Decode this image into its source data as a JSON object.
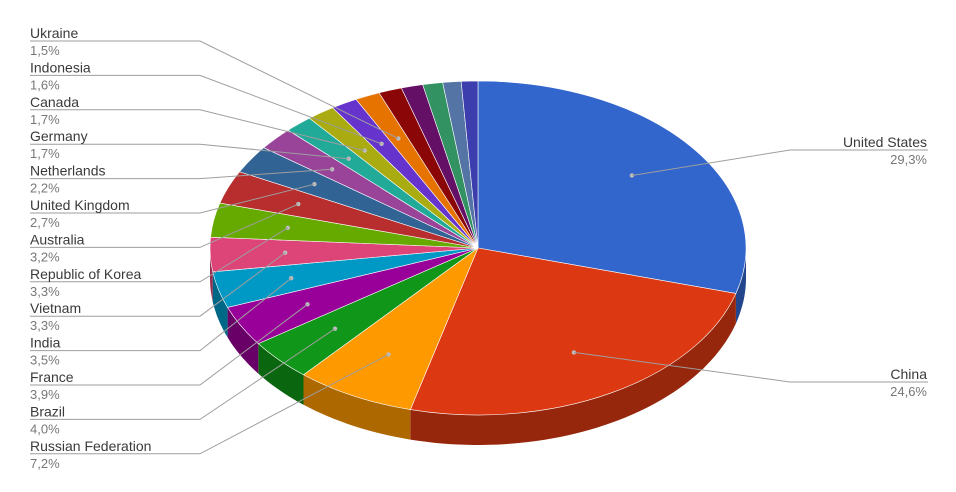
{
  "chart_data": {
    "type": "pie",
    "style": "3d-tilted",
    "title": "",
    "legend": "none (leader-line labels)",
    "slices": [
      {
        "label": "United States",
        "value_label": "29,3%",
        "value": 29.3,
        "color": "#3366cc"
      },
      {
        "label": "China",
        "value_label": "24,6%",
        "value": 24.6,
        "color": "#dc3912"
      },
      {
        "label": "Russian Federation",
        "value_label": "7,2%",
        "value": 7.2,
        "color": "#ff9900"
      },
      {
        "label": "Brazil",
        "value_label": "4,0%",
        "value": 4.0,
        "color": "#109618"
      },
      {
        "label": "France",
        "value_label": "3,9%",
        "value": 3.9,
        "color": "#990099"
      },
      {
        "label": "India",
        "value_label": "3,5%",
        "value": 3.5,
        "color": "#0099c6"
      },
      {
        "label": "Vietnam",
        "value_label": "3,3%",
        "value": 3.3,
        "color": "#dd4477"
      },
      {
        "label": "Republic of Korea",
        "value_label": "3,3%",
        "value": 3.3,
        "color": "#66aa00"
      },
      {
        "label": "Australia",
        "value_label": "3,2%",
        "value": 3.2,
        "color": "#b82e2e"
      },
      {
        "label": "United Kingdom",
        "value_label": "2,7%",
        "value": 2.7,
        "color": "#316395"
      },
      {
        "label": "Netherlands",
        "value_label": "2,2%",
        "value": 2.2,
        "color": "#994499"
      },
      {
        "label": "Germany",
        "value_label": "1,7%",
        "value": 1.7,
        "color": "#22aa99"
      },
      {
        "label": "Canada",
        "value_label": "1,7%",
        "value": 1.7,
        "color": "#aaaa11"
      },
      {
        "label": "Indonesia",
        "value_label": "1,6%",
        "value": 1.6,
        "color": "#6633cc"
      },
      {
        "label": "Ukraine",
        "value_label": "1,5%",
        "value": 1.5,
        "color": "#e67300"
      },
      {
        "label": "",
        "value_label": "",
        "value": 1.4,
        "color": "#8b0707"
      },
      {
        "label": "",
        "value_label": "",
        "value": 1.3,
        "color": "#651067"
      },
      {
        "label": "",
        "value_label": "",
        "value": 1.2,
        "color": "#329262"
      },
      {
        "label": "",
        "value_label": "",
        "value": 1.1,
        "color": "#5574a6"
      },
      {
        "label": "",
        "value_label": "",
        "value": 1.0,
        "color": "#3b3eac"
      }
    ]
  }
}
